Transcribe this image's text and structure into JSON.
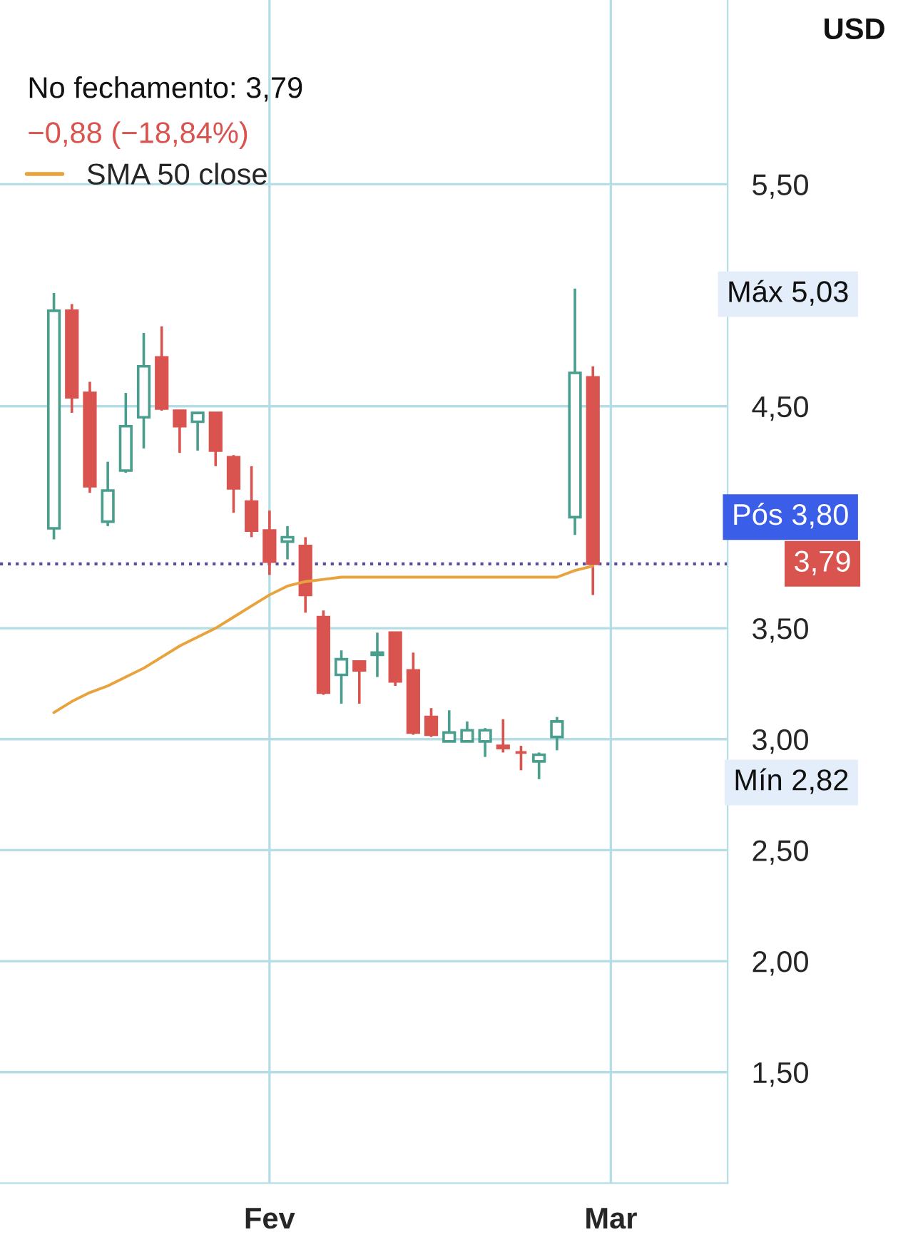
{
  "chart_data": {
    "type": "candlestick",
    "categories": [
      null,
      null,
      null,
      null,
      null,
      null,
      null,
      null,
      null,
      null,
      null,
      null,
      "Fev",
      null,
      null,
      null,
      null,
      null,
      null,
      null,
      null,
      null,
      null,
      null,
      null,
      null,
      null,
      null,
      null,
      null,
      null,
      "Mar"
    ],
    "ohlc": [
      [
        3.95,
        5.01,
        3.9,
        4.93
      ],
      [
        4.93,
        4.96,
        4.47,
        4.54
      ],
      [
        4.56,
        4.61,
        4.11,
        4.14
      ],
      [
        3.98,
        4.25,
        3.96,
        4.12
      ],
      [
        4.21,
        4.56,
        4.2,
        4.41
      ],
      [
        4.45,
        4.83,
        4.31,
        4.68
      ],
      [
        4.72,
        4.86,
        4.48,
        4.49
      ],
      [
        4.48,
        4.48,
        4.29,
        4.41
      ],
      [
        4.43,
        4.47,
        4.3,
        4.47
      ],
      [
        4.47,
        4.47,
        4.23,
        4.3
      ],
      [
        4.27,
        4.28,
        4.02,
        4.13
      ],
      [
        4.07,
        4.23,
        3.91,
        3.94
      ],
      [
        3.94,
        4.03,
        3.74,
        3.8
      ],
      [
        3.89,
        3.96,
        3.81,
        3.91
      ],
      [
        3.87,
        3.91,
        3.57,
        3.65
      ],
      [
        3.55,
        3.58,
        3.2,
        3.21
      ],
      [
        3.29,
        3.4,
        3.16,
        3.36
      ],
      [
        3.35,
        3.35,
        3.16,
        3.31
      ],
      [
        3.38,
        3.48,
        3.28,
        3.39
      ],
      [
        3.48,
        3.48,
        3.24,
        3.26
      ],
      [
        3.31,
        3.39,
        3.02,
        3.03
      ],
      [
        3.1,
        3.14,
        3.01,
        3.02
      ],
      [
        2.99,
        3.13,
        2.99,
        3.03
      ],
      [
        2.99,
        3.08,
        2.99,
        3.04
      ],
      [
        2.99,
        3.05,
        2.92,
        3.04
      ],
      [
        2.97,
        3.09,
        2.94,
        2.96
      ],
      [
        2.94,
        2.97,
        2.86,
        2.94
      ],
      [
        2.9,
        2.94,
        2.82,
        2.93
      ],
      [
        3.01,
        3.1,
        2.95,
        3.08
      ],
      [
        4.0,
        5.03,
        3.92,
        4.65
      ],
      [
        4.63,
        4.68,
        3.65,
        3.79
      ],
      null
    ],
    "colors": [
      "#4a9e8e",
      "#d9534f",
      "#d9534f",
      "#4a9e8e",
      "#4a9e8e",
      "#4a9e8e",
      "#d9534f",
      "#d9534f",
      "#4a9e8e",
      "#d9534f",
      "#d9534f",
      "#d9534f",
      "#d9534f",
      "#4a9e8e",
      "#d9534f",
      "#d9534f",
      "#4a9e8e",
      "#d9534f",
      "#4a9e8e",
      "#d9534f",
      "#d9534f",
      "#d9534f",
      "#4a9e8e",
      "#4a9e8e",
      "#4a9e8e",
      "#d9534f",
      "#d9534f",
      "#4a9e8e",
      "#4a9e8e",
      "#4a9e8e",
      "#d9534f",
      null
    ],
    "series": [
      {
        "name": "SMA 50 close",
        "type": "line",
        "color": "#e8a33d",
        "values": [
          3.12,
          3.17,
          3.21,
          3.24,
          3.28,
          3.32,
          3.37,
          3.42,
          3.46,
          3.5,
          3.55,
          3.6,
          3.65,
          3.69,
          3.71,
          3.72,
          3.73,
          3.73,
          3.73,
          3.73,
          3.73,
          3.73,
          3.73,
          3.73,
          3.73,
          3.73,
          3.73,
          3.73,
          3.73,
          3.76,
          3.78,
          null
        ]
      }
    ],
    "ylim": [
      1.0,
      6.33
    ],
    "yticks": [
      {
        "value": 1.5,
        "label": "1,50"
      },
      {
        "value": 2.0,
        "label": "2,00"
      },
      {
        "value": 2.5,
        "label": "2,50"
      },
      {
        "value": 3.0,
        "label": "3,00"
      },
      {
        "value": 3.5,
        "label": "3,50"
      },
      {
        "value": 4.5,
        "label": "4,50"
      },
      {
        "value": 5.5,
        "label": "5,50"
      }
    ],
    "grid": true,
    "legend": "top left",
    "ref_lines": [
      {
        "axis": "y",
        "value": 3.79,
        "label": "3,79",
        "color": "#5b4a9e",
        "line_style": "dotted"
      }
    ],
    "annotations": [
      "No fechamento: 3,79",
      "−0,88 (−18,84%)",
      "USD",
      "Máx 5,03",
      "Pós 3,80",
      "Mín 2,82"
    ]
  }
}
